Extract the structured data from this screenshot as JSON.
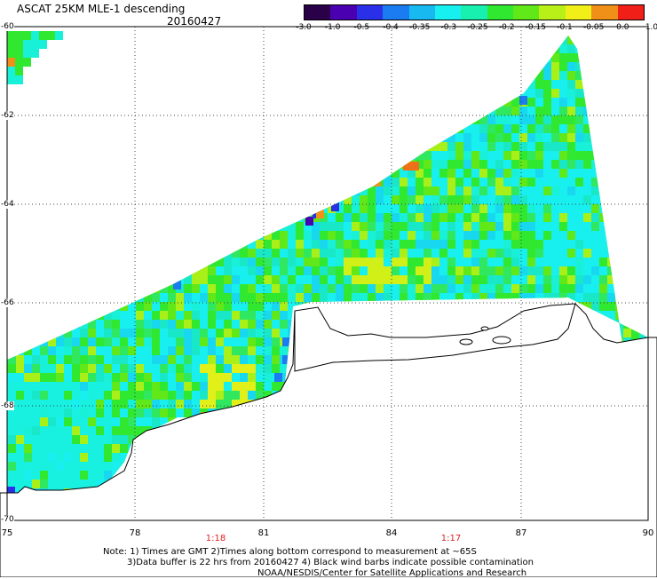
{
  "header": {
    "title": "ASCAT 25KM MLE-1 descending",
    "date": "20160427"
  },
  "colorbar": {
    "labels": [
      "-3.0",
      "-1.0",
      "-0.5",
      "-0.4",
      "-0.35",
      "-0.3",
      "-0.25",
      "-0.2",
      "-0.15",
      "-0.1",
      "-0.05",
      "0.0",
      "1.0"
    ],
    "colors": [
      "#2a0048",
      "#4a00b0",
      "#2a30e8",
      "#1a7cf0",
      "#18b8f0",
      "#18f0f0",
      "#18f0b0",
      "#30e830",
      "#60e818",
      "#b8f018",
      "#f0f018",
      "#f09018",
      "#f02018"
    ]
  },
  "map": {
    "y_labels": [
      "-60",
      "-62",
      "-64",
      "-66",
      "-68",
      "-70"
    ],
    "x_labels": [
      "75",
      "78",
      "81",
      "84",
      "87",
      "90"
    ],
    "time_labels": [
      "1:18",
      "1:17"
    ],
    "time_label_color": "#e02020",
    "coastline_color": "#000000",
    "land_color": "#ffffff",
    "grid": "dotted"
  },
  "footer": {
    "note_line1": "Note: 1) Times are GMT 2)Times along bottom correspond to measurement at ~65S",
    "note_line2": "3)Data buffer is 22 hrs from 20160427 4) Black wind barbs indicate possible contamination",
    "credit": "NOAA/NESDIS/Center for Satellite Applications and Research"
  }
}
